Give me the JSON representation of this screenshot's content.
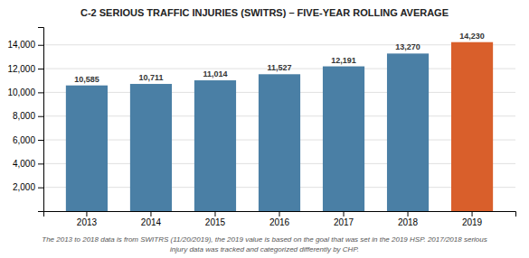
{
  "chart_data": {
    "type": "bar",
    "title": "C-2 SERIOUS TRAFFIC INJURIES (SWITRS) – FIVE-YEAR ROLLING AVERAGE",
    "categories": [
      "2013",
      "2014",
      "2015",
      "2016",
      "2017",
      "2018",
      "2019"
    ],
    "values": [
      10585,
      10711,
      11014,
      11527,
      12191,
      13270,
      14230
    ],
    "value_labels": [
      "10,585",
      "10,711",
      "11,014",
      "11,527",
      "12,191",
      "13,270",
      "14,230"
    ],
    "data_labels": true,
    "colors": [
      "#4a7fa5",
      "#4a7fa5",
      "#4a7fa5",
      "#4a7fa5",
      "#4a7fa5",
      "#4a7fa5",
      "#d95f2b"
    ],
    "ylim": [
      0,
      15500
    ],
    "yticks": [
      {
        "value": 2000,
        "label": "2,000"
      },
      {
        "value": 4000,
        "label": "4,000"
      },
      {
        "value": 6000,
        "label": "6,000"
      },
      {
        "value": 8000,
        "label": "8,000"
      },
      {
        "value": 10000,
        "label": "10,000"
      },
      {
        "value": 12000,
        "label": "12,000"
      },
      {
        "value": 14000,
        "label": "14,000"
      }
    ],
    "grid": true,
    "annotations": [
      "The 2013 to 2018 data is from SWITRS (11/20/2019), the 2019 value is based on the goal that was set in the 2019 HSP. 2017/2018 serious",
      "injury data was tracked and categorized differently by CHP."
    ]
  }
}
